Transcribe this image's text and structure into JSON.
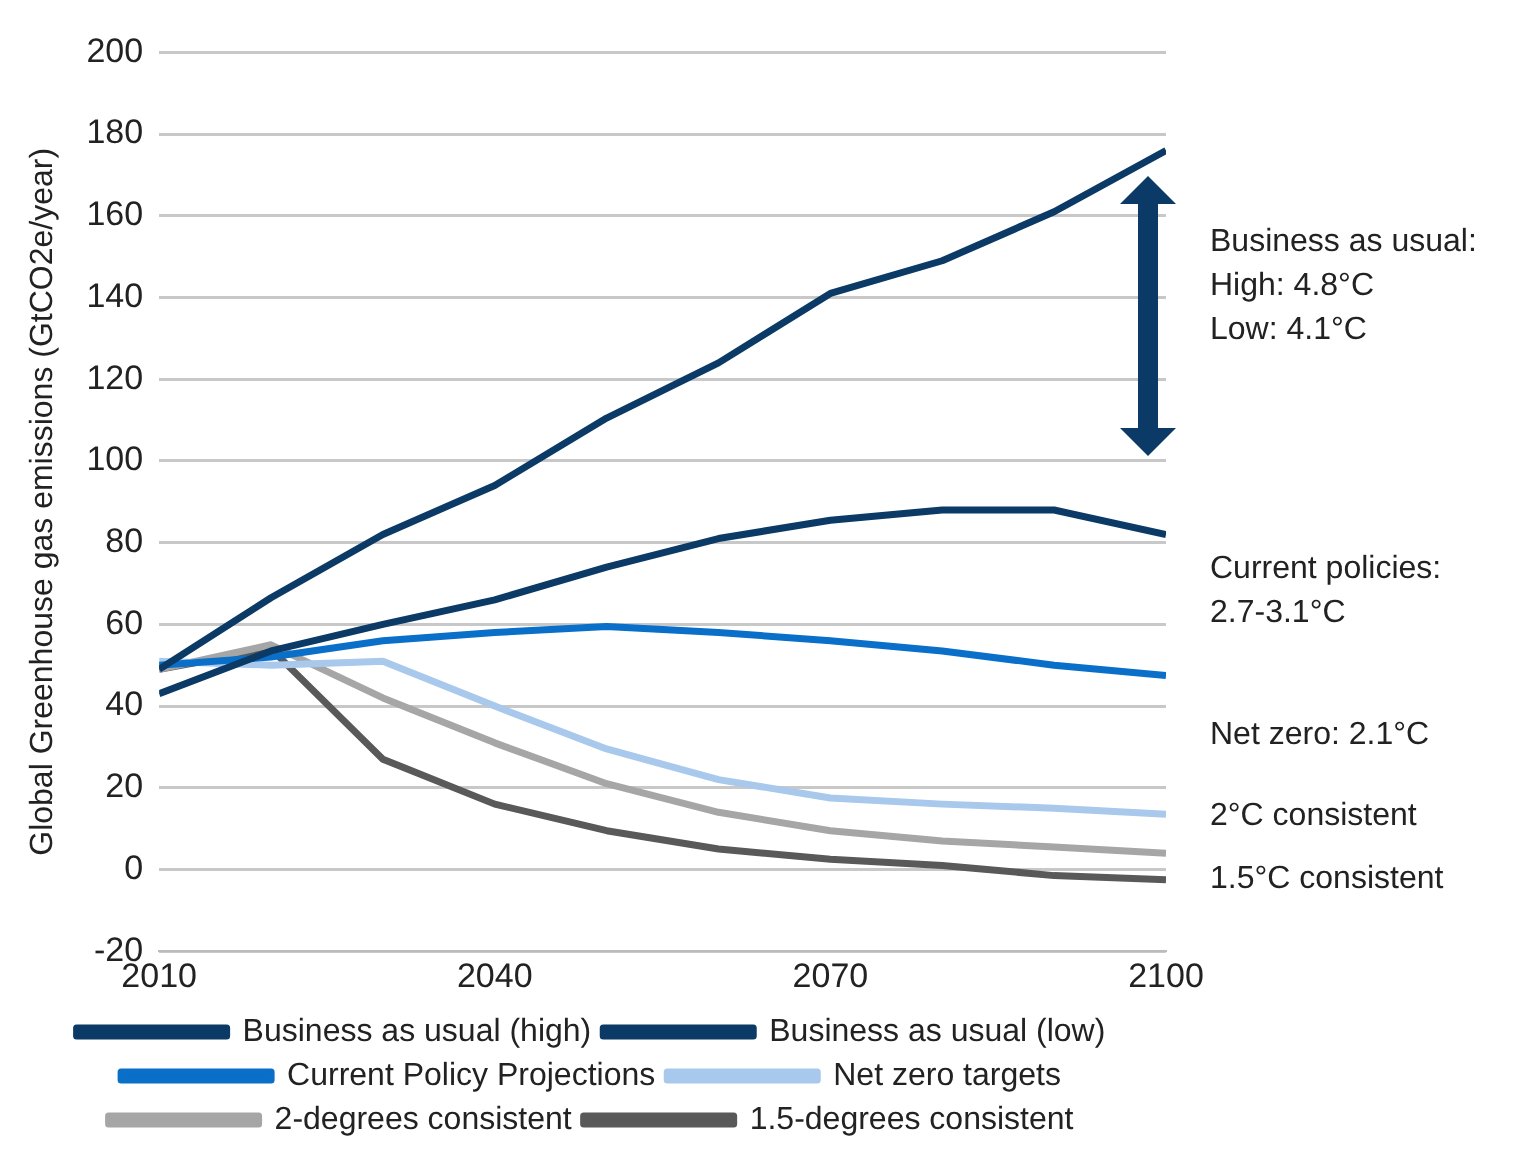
{
  "chart_data": {
    "type": "line",
    "ylabel": "Global Greenhouse gas emissions (GtCO2e/year)",
    "x": [
      2010,
      2020,
      2030,
      2040,
      2050,
      2060,
      2070,
      2080,
      2090,
      2100
    ],
    "series": [
      {
        "name": "Business as usual (high)",
        "color": "#0b3a66",
        "values": [
          49,
          66.5,
          82,
          94,
          110.5,
          124,
          141,
          149,
          161,
          176
        ]
      },
      {
        "name": "Business as usual (low)",
        "color": "#0b3a66",
        "values": [
          43,
          53.5,
          60,
          66,
          74,
          81,
          85.5,
          88,
          88,
          82
        ]
      },
      {
        "name": "Current Policy Projections",
        "color": "#0a6fc9",
        "values": [
          50,
          52,
          56,
          58,
          59.5,
          58,
          56,
          53.5,
          50,
          47.5
        ]
      },
      {
        "name": "Net zero targets",
        "color": "#a8c8ec",
        "values": [
          51,
          50,
          51,
          40,
          29.5,
          22,
          17.5,
          16,
          15,
          13.5
        ]
      },
      {
        "name": "2-degrees consistent",
        "color": "#a6a6a6",
        "values": [
          49,
          55,
          42,
          31,
          21,
          14,
          9.5,
          7,
          5.5,
          4
        ]
      },
      {
        "name": "1.5-degrees consistent",
        "color": "#595959",
        "values": [
          49,
          54,
          27,
          16,
          9.5,
          5,
          2.5,
          1,
          -1.5,
          -2.5
        ]
      }
    ],
    "xlim": [
      2010,
      2100
    ],
    "xticks": [
      2010,
      2040,
      2070,
      2100
    ],
    "ylim": [
      -20,
      200
    ],
    "yticks": [
      -20,
      0,
      20,
      40,
      60,
      80,
      100,
      120,
      140,
      160,
      180,
      200
    ],
    "grid": "y",
    "legend": "bottom",
    "marker": "none",
    "line_style": "solid",
    "annotations": [
      "Business as usual:\nHigh: 4.8°C\nLow: 4.1°C",
      "Current policies:\n2.7-3.1°C",
      "Net zero: 2.1°C",
      "2°C consistent",
      "1.5°C consistent"
    ]
  }
}
